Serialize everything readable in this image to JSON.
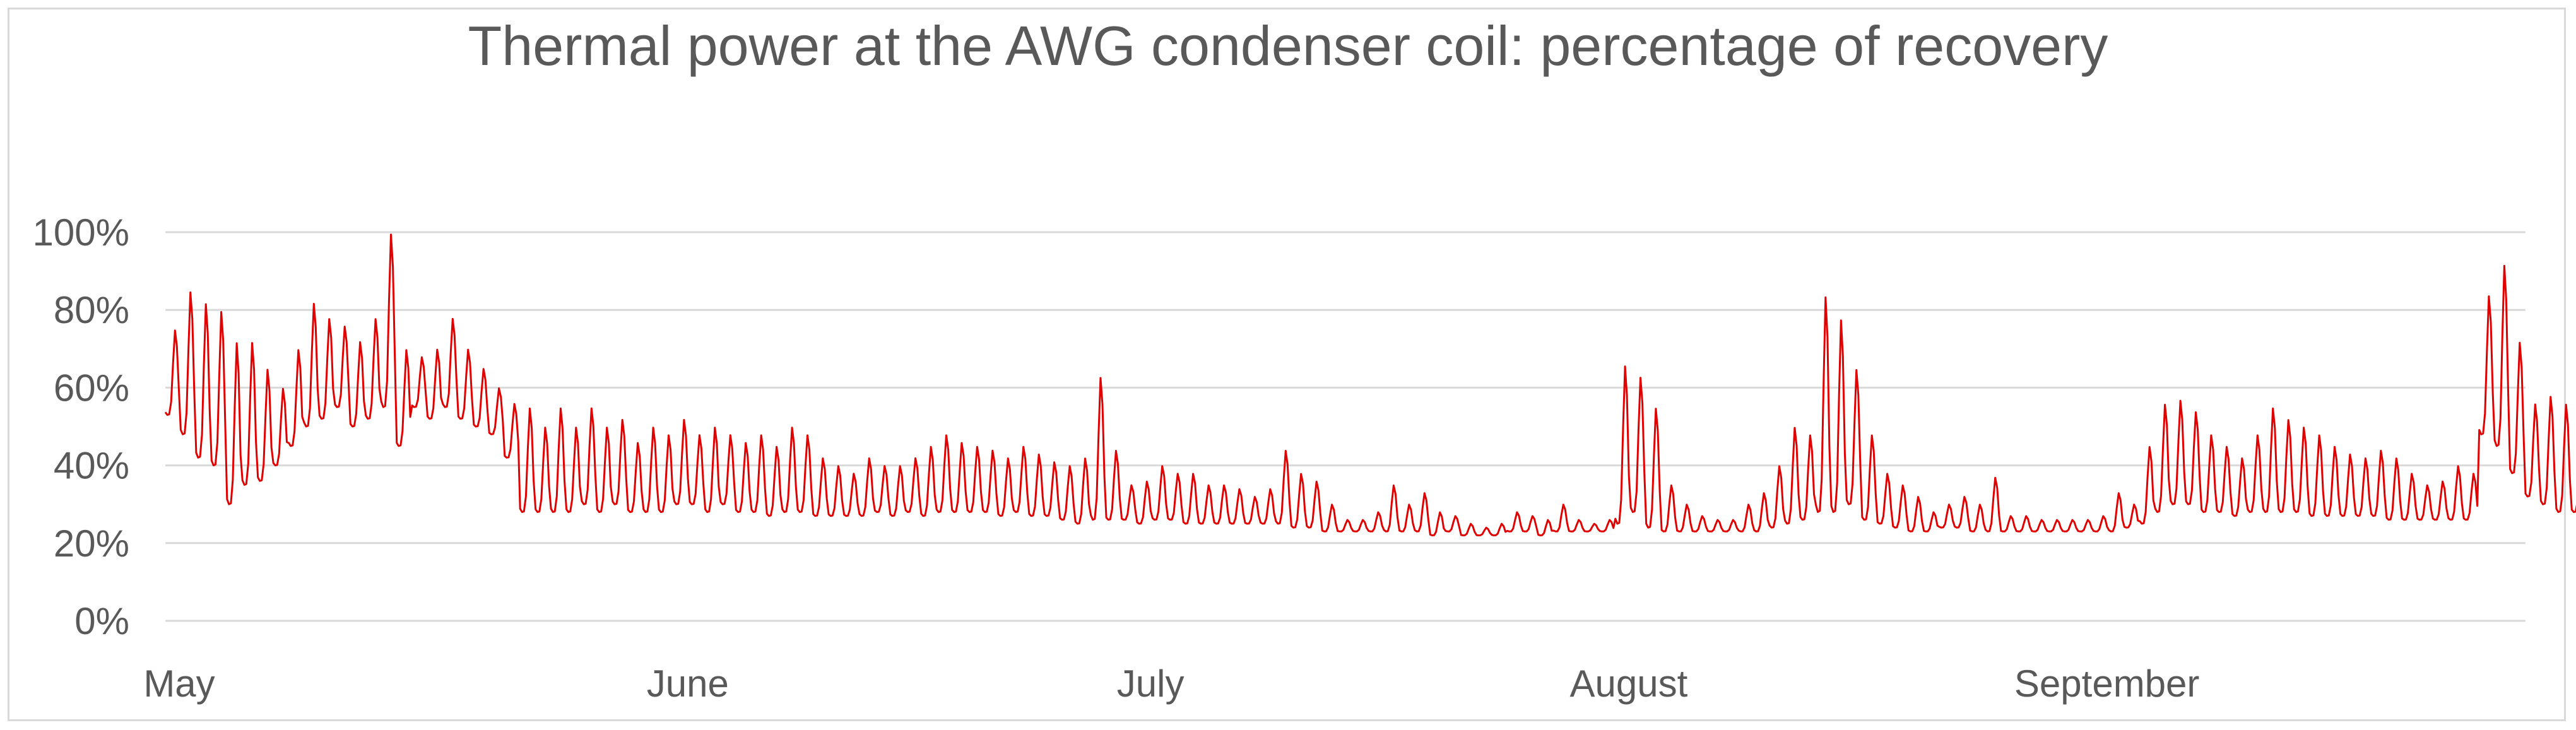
{
  "title": "Thermal power at the AWG condenser coil: percentage of recovery",
  "colors": {
    "series": "#e00000",
    "grid": "#d9d9d9",
    "text": "#595959",
    "frame": "#d9d9d9"
  },
  "chart_data": {
    "type": "line",
    "title": "Thermal power at the AWG condenser coil: percentage of recovery",
    "xlabel": "",
    "ylabel": "",
    "x_unit": "day",
    "xlim": [
      0,
      153
    ],
    "ylim": [
      0,
      100
    ],
    "grid": true,
    "legend": "none",
    "y_ticks": [
      "0%",
      "20%",
      "40%",
      "60%",
      "80%",
      "100%"
    ],
    "y_tick_values": [
      0,
      20,
      40,
      60,
      80,
      100
    ],
    "x_ticks": [
      "May",
      "June",
      "July",
      "August",
      "September"
    ],
    "x_tick_values": [
      0,
      31,
      61,
      92,
      123
    ],
    "daily_range_percent": [
      [
        53,
        75
      ],
      [
        48,
        85
      ],
      [
        42,
        82
      ],
      [
        40,
        80
      ],
      [
        30,
        72
      ],
      [
        35,
        72
      ],
      [
        36,
        65
      ],
      [
        40,
        60
      ],
      [
        45,
        70
      ],
      [
        50,
        82
      ],
      [
        52,
        78
      ],
      [
        55,
        76
      ],
      [
        50,
        72
      ],
      [
        52,
        78
      ],
      [
        55,
        100
      ],
      [
        45,
        70
      ],
      [
        55,
        68
      ],
      [
        52,
        70
      ],
      [
        55,
        78
      ],
      [
        52,
        70
      ],
      [
        50,
        65
      ],
      [
        48,
        60
      ],
      [
        42,
        56
      ],
      [
        28,
        55
      ],
      [
        28,
        50
      ],
      [
        28,
        55
      ],
      [
        28,
        50
      ],
      [
        30,
        55
      ],
      [
        28,
        50
      ],
      [
        30,
        52
      ],
      [
        28,
        46
      ],
      [
        28,
        50
      ],
      [
        28,
        48
      ],
      [
        30,
        52
      ],
      [
        30,
        48
      ],
      [
        28,
        50
      ],
      [
        30,
        48
      ],
      [
        28,
        46
      ],
      [
        28,
        48
      ],
      [
        27,
        45
      ],
      [
        28,
        50
      ],
      [
        28,
        48
      ],
      [
        27,
        42
      ],
      [
        27,
        40
      ],
      [
        27,
        38
      ],
      [
        27,
        42
      ],
      [
        28,
        40
      ],
      [
        27,
        40
      ],
      [
        28,
        42
      ],
      [
        27,
        45
      ],
      [
        28,
        48
      ],
      [
        28,
        46
      ],
      [
        28,
        45
      ],
      [
        28,
        44
      ],
      [
        27,
        42
      ],
      [
        28,
        45
      ],
      [
        27,
        43
      ],
      [
        27,
        41
      ],
      [
        26,
        40
      ],
      [
        25,
        42
      ],
      [
        26,
        63
      ],
      [
        26,
        44
      ],
      [
        26,
        35
      ],
      [
        25,
        36
      ],
      [
        26,
        40
      ],
      [
        26,
        38
      ],
      [
        25,
        38
      ],
      [
        25,
        35
      ],
      [
        25,
        35
      ],
      [
        25,
        34
      ],
      [
        25,
        32
      ],
      [
        25,
        34
      ],
      [
        25,
        44
      ],
      [
        24,
        38
      ],
      [
        24,
        36
      ],
      [
        23,
        30
      ],
      [
        23,
        26
      ],
      [
        23,
        26
      ],
      [
        23,
        28
      ],
      [
        23,
        35
      ],
      [
        23,
        30
      ],
      [
        23,
        33
      ],
      [
        22,
        28
      ],
      [
        23,
        27
      ],
      [
        22,
        25
      ],
      [
        22,
        24
      ],
      [
        22,
        25
      ],
      [
        23,
        28
      ],
      [
        23,
        27
      ],
      [
        22,
        26
      ],
      [
        23,
        30
      ],
      [
        23,
        26
      ],
      [
        23,
        25
      ],
      [
        23,
        26
      ],
      [
        25,
        66
      ],
      [
        28,
        63
      ],
      [
        24,
        55
      ],
      [
        23,
        35
      ],
      [
        23,
        30
      ],
      [
        23,
        27
      ],
      [
        23,
        26
      ],
      [
        23,
        26
      ],
      [
        23,
        30
      ],
      [
        23,
        33
      ],
      [
        24,
        40
      ],
      [
        25,
        50
      ],
      [
        26,
        48
      ],
      [
        28,
        84
      ],
      [
        28,
        78
      ],
      [
        30,
        65
      ],
      [
        26,
        48
      ],
      [
        25,
        38
      ],
      [
        24,
        35
      ],
      [
        23,
        32
      ],
      [
        23,
        28
      ],
      [
        24,
        30
      ],
      [
        24,
        32
      ],
      [
        23,
        30
      ],
      [
        23,
        37
      ],
      [
        23,
        27
      ],
      [
        23,
        27
      ],
      [
        23,
        26
      ],
      [
        23,
        26
      ],
      [
        23,
        26
      ],
      [
        23,
        26
      ],
      [
        23,
        27
      ],
      [
        23,
        33
      ],
      [
        24,
        30
      ],
      [
        25,
        45
      ],
      [
        28,
        56
      ],
      [
        30,
        57
      ],
      [
        30,
        54
      ],
      [
        28,
        48
      ],
      [
        28,
        45
      ],
      [
        27,
        42
      ],
      [
        28,
        48
      ],
      [
        28,
        55
      ],
      [
        28,
        52
      ],
      [
        28,
        50
      ],
      [
        27,
        48
      ],
      [
        27,
        45
      ],
      [
        27,
        43
      ],
      [
        27,
        42
      ],
      [
        27,
        44
      ],
      [
        26,
        42
      ],
      [
        26,
        38
      ],
      [
        26,
        35
      ],
      [
        26,
        36
      ],
      [
        26,
        40
      ],
      [
        26,
        38
      ],
      [
        48,
        84
      ],
      [
        45,
        92
      ],
      [
        38,
        72
      ],
      [
        32,
        56
      ],
      [
        30,
        58
      ],
      [
        28,
        56
      ],
      [
        28,
        47
      ]
    ]
  }
}
